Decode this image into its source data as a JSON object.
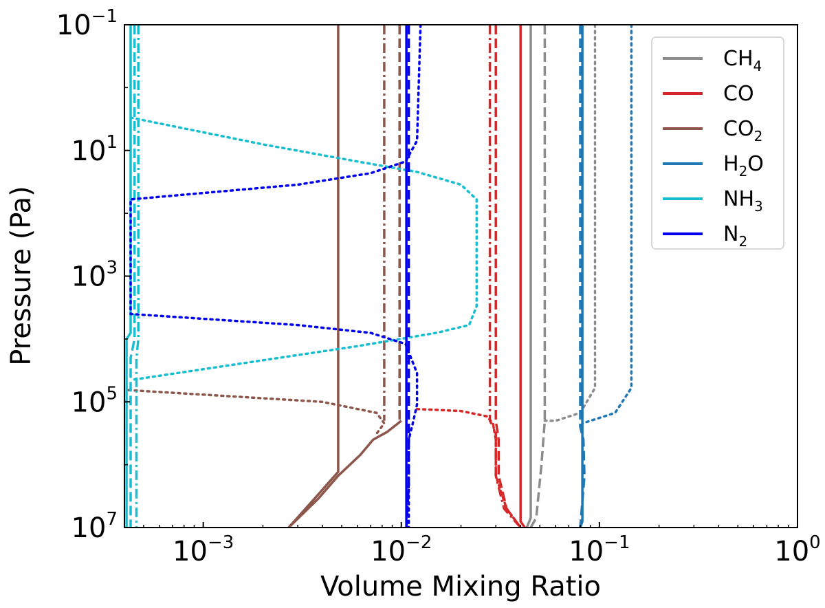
{
  "chart_data": {
    "type": "line",
    "title": "",
    "xlabel": "Volume Mixing Ratio",
    "ylabel": "Pressure (Pa)",
    "xscale": "log",
    "yscale": "log",
    "xlim": [
      0.0004,
      1
    ],
    "ylim": [
      10000000,
      0.1
    ],
    "y_inverted": true,
    "legend_position": "top-right",
    "xticks": [
      {
        "value": 0.001,
        "base": "10",
        "exp": "−3"
      },
      {
        "value": 0.01,
        "base": "10",
        "exp": "−2"
      },
      {
        "value": 0.1,
        "base": "10",
        "exp": "−1"
      },
      {
        "value": 1,
        "base": "10",
        "exp": "0"
      }
    ],
    "yticks": [
      {
        "value": 0.1,
        "base": "10",
        "exp": "−1"
      },
      {
        "value": 10,
        "base": "10",
        "exp": "1"
      },
      {
        "value": 1000,
        "base": "10",
        "exp": "3"
      },
      {
        "value": 100000,
        "base": "10",
        "exp": "5"
      },
      {
        "value": 10000000,
        "base": "10",
        "exp": "7"
      }
    ],
    "legend": [
      {
        "main": "CH",
        "sub": "4",
        "color": "#8c8c8c"
      },
      {
        "main": "CO",
        "sub": "",
        "color": "#d62728"
      },
      {
        "main": "CO",
        "sub": "2",
        "color": "#8c564b"
      },
      {
        "main": "H",
        "sub": "2",
        "tail": "O",
        "color": "#1f77b4"
      },
      {
        "main": "NH",
        "sub": "3",
        "color": "#17becf"
      },
      {
        "main": "N",
        "sub": "2",
        "color": "#0000ee"
      }
    ],
    "series": [
      {
        "name": "CH4 solid",
        "species": "CH4",
        "style": "solid",
        "color": "#8c8c8c",
        "points": [
          [
            0.045,
            0.1
          ],
          [
            0.045,
            7000000
          ],
          [
            0.043,
            10000000
          ]
        ]
      },
      {
        "name": "CH4 dashed",
        "species": "CH4",
        "style": "dashed",
        "color": "#8c8c8c",
        "points": [
          [
            0.053,
            0.1
          ],
          [
            0.053,
            200000
          ],
          [
            0.051,
            1000000
          ],
          [
            0.048,
            7000000
          ],
          [
            0.045,
            10000000
          ]
        ]
      },
      {
        "name": "CH4 dotted",
        "species": "CH4",
        "style": "dotted",
        "color": "#8c8c8c",
        "points": [
          [
            0.095,
            0.1
          ],
          [
            0.095,
            60000
          ],
          [
            0.08,
            150000
          ],
          [
            0.06,
            200000
          ],
          [
            0.053,
            200000
          ]
        ]
      },
      {
        "name": "CO solid",
        "species": "CO",
        "style": "solid",
        "color": "#d62728",
        "points": [
          [
            0.04,
            0.1
          ],
          [
            0.04,
            8000000
          ],
          [
            0.042,
            10000000
          ]
        ]
      },
      {
        "name": "CO dashed",
        "species": "CO",
        "style": "dashed",
        "color": "#d62728",
        "points": [
          [
            0.03,
            0.1
          ],
          [
            0.03,
            200000
          ],
          [
            0.031,
            400000
          ],
          [
            0.031,
            1500000
          ],
          [
            0.034,
            5000000
          ],
          [
            0.04,
            10000000
          ]
        ]
      },
      {
        "name": "CO dashdot",
        "species": "CO",
        "style": "dashdot",
        "color": "#d62728",
        "points": [
          [
            0.028,
            0.1
          ],
          [
            0.028,
            200000
          ],
          [
            0.03,
            300000
          ],
          [
            0.03,
            1500000
          ],
          [
            0.033,
            5000000
          ],
          [
            0.04,
            10000000
          ]
        ]
      },
      {
        "name": "CO dotted",
        "species": "CO",
        "style": "dotted",
        "color": "#d62728",
        "points": [
          [
            0.012,
            130000
          ],
          [
            0.02,
            140000
          ],
          [
            0.027,
            170000
          ],
          [
            0.029,
            220000
          ],
          [
            0.03,
            400000
          ],
          [
            0.03,
            1500000
          ],
          [
            0.034,
            5000000
          ],
          [
            0.04,
            10000000
          ]
        ]
      },
      {
        "name": "CO2 solid",
        "species": "CO2",
        "style": "solid",
        "color": "#8c564b",
        "points": [
          [
            0.0048,
            0.1
          ],
          [
            0.0048,
            1300000
          ],
          [
            0.0038,
            3000000
          ],
          [
            0.0027,
            10000000
          ]
        ]
      },
      {
        "name": "CO2 solid deep",
        "species": "CO2",
        "style": "solid",
        "color": "#8c564b",
        "points": [
          [
            0.01,
            200000
          ],
          [
            0.0085,
            300000
          ],
          [
            0.0072,
            400000
          ],
          [
            0.0062,
            700000
          ],
          [
            0.0048,
            1500000
          ],
          [
            0.0038,
            3500000
          ],
          [
            0.0027,
            10000000
          ]
        ]
      },
      {
        "name": "CO2 dashdot",
        "species": "CO2",
        "style": "dashdot",
        "color": "#8c564b",
        "points": [
          [
            0.0082,
            0.1
          ],
          [
            0.0082,
            200000
          ]
        ]
      },
      {
        "name": "CO2 dashed",
        "species": "CO2",
        "style": "dashed",
        "color": "#8c564b",
        "points": [
          [
            0.0098,
            0.1
          ],
          [
            0.0098,
            200000
          ]
        ]
      },
      {
        "name": "CO2 dotted",
        "species": "CO2",
        "style": "dotted",
        "color": "#8c564b",
        "points": [
          [
            0.00042,
            65000
          ],
          [
            0.004,
            100000
          ],
          [
            0.0075,
            150000
          ],
          [
            0.0082,
            220000
          ],
          [
            0.0075,
            320000
          ]
        ]
      },
      {
        "name": "H2O solid",
        "species": "H2O",
        "style": "solid",
        "color": "#1f77b4",
        "points": [
          [
            0.082,
            0.1
          ],
          [
            0.082,
            8000000
          ],
          [
            0.08,
            10000000
          ]
        ]
      },
      {
        "name": "H2O dashed",
        "species": "H2O",
        "style": "dashed",
        "color": "#1f77b4",
        "points": [
          [
            0.08,
            0.1
          ],
          [
            0.08,
            250000
          ],
          [
            0.083,
            400000
          ],
          [
            0.084,
            1500000
          ],
          [
            0.08,
            10000000
          ]
        ]
      },
      {
        "name": "H2O dotted",
        "species": "H2O",
        "style": "dotted",
        "color": "#1f77b4",
        "points": [
          [
            0.145,
            0.1
          ],
          [
            0.145,
            60000
          ],
          [
            0.12,
            150000
          ],
          [
            0.09,
            200000
          ],
          [
            0.082,
            220000
          ]
        ]
      },
      {
        "name": "NH3 solid",
        "species": "NH3",
        "style": "solid",
        "color": "#17becf",
        "points": [
          [
            0.00043,
            0.1
          ],
          [
            0.00043,
            8000
          ],
          [
            0.00041,
            10000
          ],
          [
            0.00041,
            10000000
          ]
        ]
      },
      {
        "name": "NH3 dashed",
        "species": "NH3",
        "style": "dashed",
        "color": "#17becf",
        "points": [
          [
            0.00045,
            0.1
          ],
          [
            0.00045,
            10000
          ],
          [
            0.00043,
            20000
          ],
          [
            0.00043,
            10000000
          ]
        ]
      },
      {
        "name": "NH3 dashdot",
        "species": "NH3",
        "style": "dashdot",
        "color": "#17becf",
        "points": [
          [
            0.00047,
            0.1
          ],
          [
            0.00047,
            10000
          ],
          [
            0.00046,
            20000
          ],
          [
            0.00046,
            10000000
          ]
        ]
      },
      {
        "name": "NH3 dotted",
        "species": "NH3",
        "style": "dotted",
        "color": "#17becf",
        "points": [
          [
            0.00043,
            3
          ],
          [
            0.002,
            8
          ],
          [
            0.006,
            15
          ],
          [
            0.012,
            22
          ],
          [
            0.02,
            35
          ],
          [
            0.024,
            60
          ],
          [
            0.024,
            3000
          ],
          [
            0.022,
            6000
          ],
          [
            0.015,
            8000
          ],
          [
            0.006,
            13000
          ],
          [
            0.0015,
            25000
          ],
          [
            0.00043,
            45000
          ]
        ]
      },
      {
        "name": "N2 solid",
        "species": "N2",
        "style": "solid",
        "color": "#0000ee",
        "points": [
          [
            0.0106,
            0.1
          ],
          [
            0.0106,
            10000000
          ]
        ]
      },
      {
        "name": "N2 dashed",
        "species": "N2",
        "style": "dashed",
        "color": "#0000ee",
        "points": [
          [
            0.0109,
            0.1
          ],
          [
            0.0109,
            2000000
          ],
          [
            0.0106,
            10000000
          ]
        ]
      },
      {
        "name": "N2 dotted",
        "species": "N2",
        "style": "dotted",
        "color": "#0000ee",
        "points": [
          [
            0.0125,
            0.1
          ],
          [
            0.012,
            7
          ],
          [
            0.0105,
            15
          ],
          [
            0.007,
            23
          ],
          [
            0.003,
            35
          ],
          [
            0.00043,
            60
          ],
          [
            0.00043,
            4000
          ],
          [
            0.003,
            6000
          ],
          [
            0.007,
            8000
          ],
          [
            0.0105,
            12000
          ],
          [
            0.012,
            35000
          ],
          [
            0.012,
            110000
          ],
          [
            0.0115,
            200000
          ],
          [
            0.0109,
            400000
          ],
          [
            0.0109,
            10000000
          ]
        ]
      }
    ]
  }
}
